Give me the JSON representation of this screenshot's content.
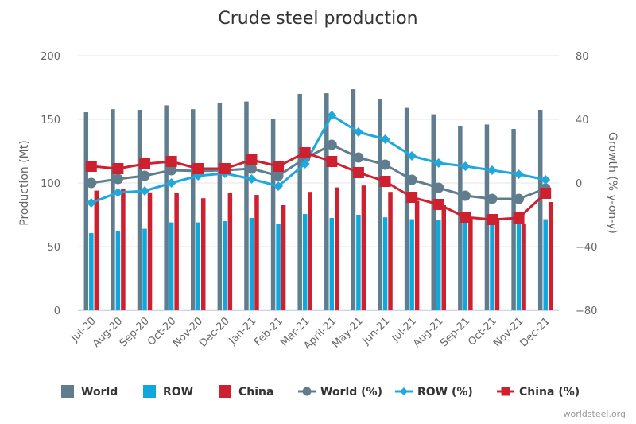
{
  "chart_data": {
    "type": "bar",
    "title": "Crude steel production",
    "xlabel": "",
    "ylabel": "Production (Mt)",
    "y2label": "Growth (% y-on-y)",
    "ylim": [
      0,
      200
    ],
    "y2lim": [
      -80,
      80
    ],
    "yticks": [
      "0",
      "50",
      "100",
      "150",
      "200"
    ],
    "y2ticks": [
      "−80",
      "−40",
      "0",
      "40",
      "80"
    ],
    "grid": true,
    "legend_position": "bottom",
    "credits": "worldsteel.org",
    "categories": [
      "Jul-20",
      "Aug-20",
      "Sep-20",
      "Oct-20",
      "Nov-20",
      "Dec-20",
      "Jan-21",
      "Feb-21",
      "Mar-21",
      "April-21",
      "May-21",
      "Jun-21",
      "Jul-21",
      "Aug-21",
      "Sep-21",
      "Oct-21",
      "Nov-21",
      "Dec-21"
    ],
    "bar_series": [
      {
        "name": "World",
        "color": "#607d8f",
        "values": [
          155.6,
          158,
          157.5,
          161,
          158,
          162.5,
          164,
          150,
          170,
          170.6,
          173.7,
          166,
          159,
          154,
          145,
          146,
          142.5,
          157.5
        ]
      },
      {
        "name": "ROW",
        "color": "#0fa8dd",
        "values": [
          60.6,
          62.5,
          64,
          69,
          69,
          70,
          72.5,
          67.5,
          75.6,
          72.5,
          75,
          73,
          71.5,
          70.6,
          70,
          69,
          69,
          71.5
        ]
      },
      {
        "name": "China",
        "color": "#cf202f",
        "values": [
          94,
          95,
          92.6,
          92.5,
          88,
          92,
          90.6,
          82.5,
          93,
          96.5,
          98,
          93,
          86,
          82.5,
          73,
          71.5,
          68,
          85
        ]
      }
    ],
    "line_series": [
      {
        "name": "World (%)",
        "color": "#607d8f",
        "marker": "circle",
        "axis": "right",
        "values": [
          0,
          2.5,
          4.5,
          8,
          7.5,
          8,
          9,
          4.5,
          15.5,
          24,
          16,
          11.5,
          2,
          -3,
          -8,
          -10,
          -10,
          -3.5
        ]
      },
      {
        "name": "ROW (%)",
        "color": "#1fa8dc",
        "marker": "diamond",
        "axis": "right",
        "values": [
          -12.5,
          -6,
          -5,
          0,
          4.5,
          6,
          2.5,
          -2,
          12,
          42.5,
          32,
          27.5,
          17,
          12.5,
          10.5,
          8,
          5.5,
          2
        ]
      },
      {
        "name": "China (%)",
        "color": "#cf202f",
        "marker": "square",
        "axis": "right",
        "values": [
          10.5,
          9,
          12,
          13.5,
          9,
          9,
          14.5,
          10.5,
          19,
          13.5,
          6.5,
          1,
          -9,
          -13.5,
          -21.5,
          -23,
          -22,
          -6.5
        ]
      }
    ]
  }
}
